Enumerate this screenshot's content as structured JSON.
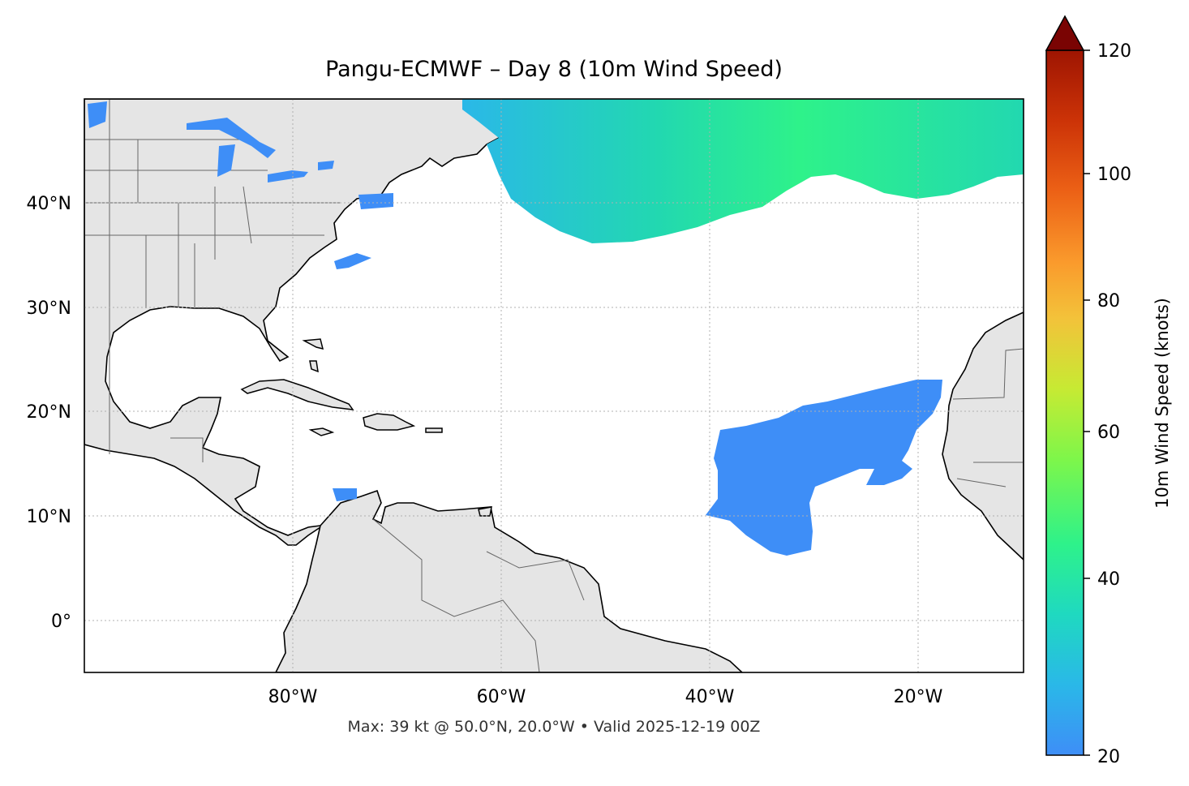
{
  "title": "Pangu-ECMWF – Day 8 (10m Wind Speed)",
  "footer": "Max: 39 kt @ 50.0°N, 20.0°W • Valid 2025-12-19 00Z",
  "map": {
    "lon_range": [
      -100,
      -10
    ],
    "lat_range": [
      -5,
      50
    ],
    "lon_ticks": [
      {
        "value": -80,
        "label": "80°W"
      },
      {
        "value": -60,
        "label": "60°W"
      },
      {
        "value": -40,
        "label": "40°W"
      },
      {
        "value": -20,
        "label": "20°W"
      }
    ],
    "lat_ticks": [
      {
        "value": 40,
        "label": "40°N"
      },
      {
        "value": 30,
        "label": "30°N"
      },
      {
        "value": 20,
        "label": "20°N"
      },
      {
        "value": 10,
        "label": "10°N"
      },
      {
        "value": 0,
        "label": "0°"
      }
    ],
    "land_color": "#e5e5e5",
    "grid": true
  },
  "colorbar": {
    "label": "10m Wind Speed (knots)",
    "range": [
      20,
      120
    ],
    "extend": "max",
    "ticks": [
      {
        "value": 20,
        "label": "20"
      },
      {
        "value": 40,
        "label": "40"
      },
      {
        "value": 60,
        "label": "60"
      },
      {
        "value": 80,
        "label": "80"
      },
      {
        "value": 100,
        "label": "100"
      },
      {
        "value": 120,
        "label": "120"
      }
    ],
    "colors": [
      "#3e8ef7",
      "#2ab8e8",
      "#1fd9c0",
      "#2ef28a",
      "#7ef64a",
      "#c7ea33",
      "#f3c23a",
      "#fa9a2c",
      "#ec6116",
      "#cc3307",
      "#9e1502",
      "#7a0403"
    ]
  },
  "wind_areas": [
    {
      "name": "north-atlantic-jet",
      "speed_kt": 35,
      "color": "#22d8b0"
    },
    {
      "name": "trade-wind-region",
      "speed_kt": 24,
      "color": "#3e8ef7"
    }
  ],
  "max_wind": {
    "speed_kt": 39,
    "lat": 50.0,
    "lon": -20.0
  }
}
